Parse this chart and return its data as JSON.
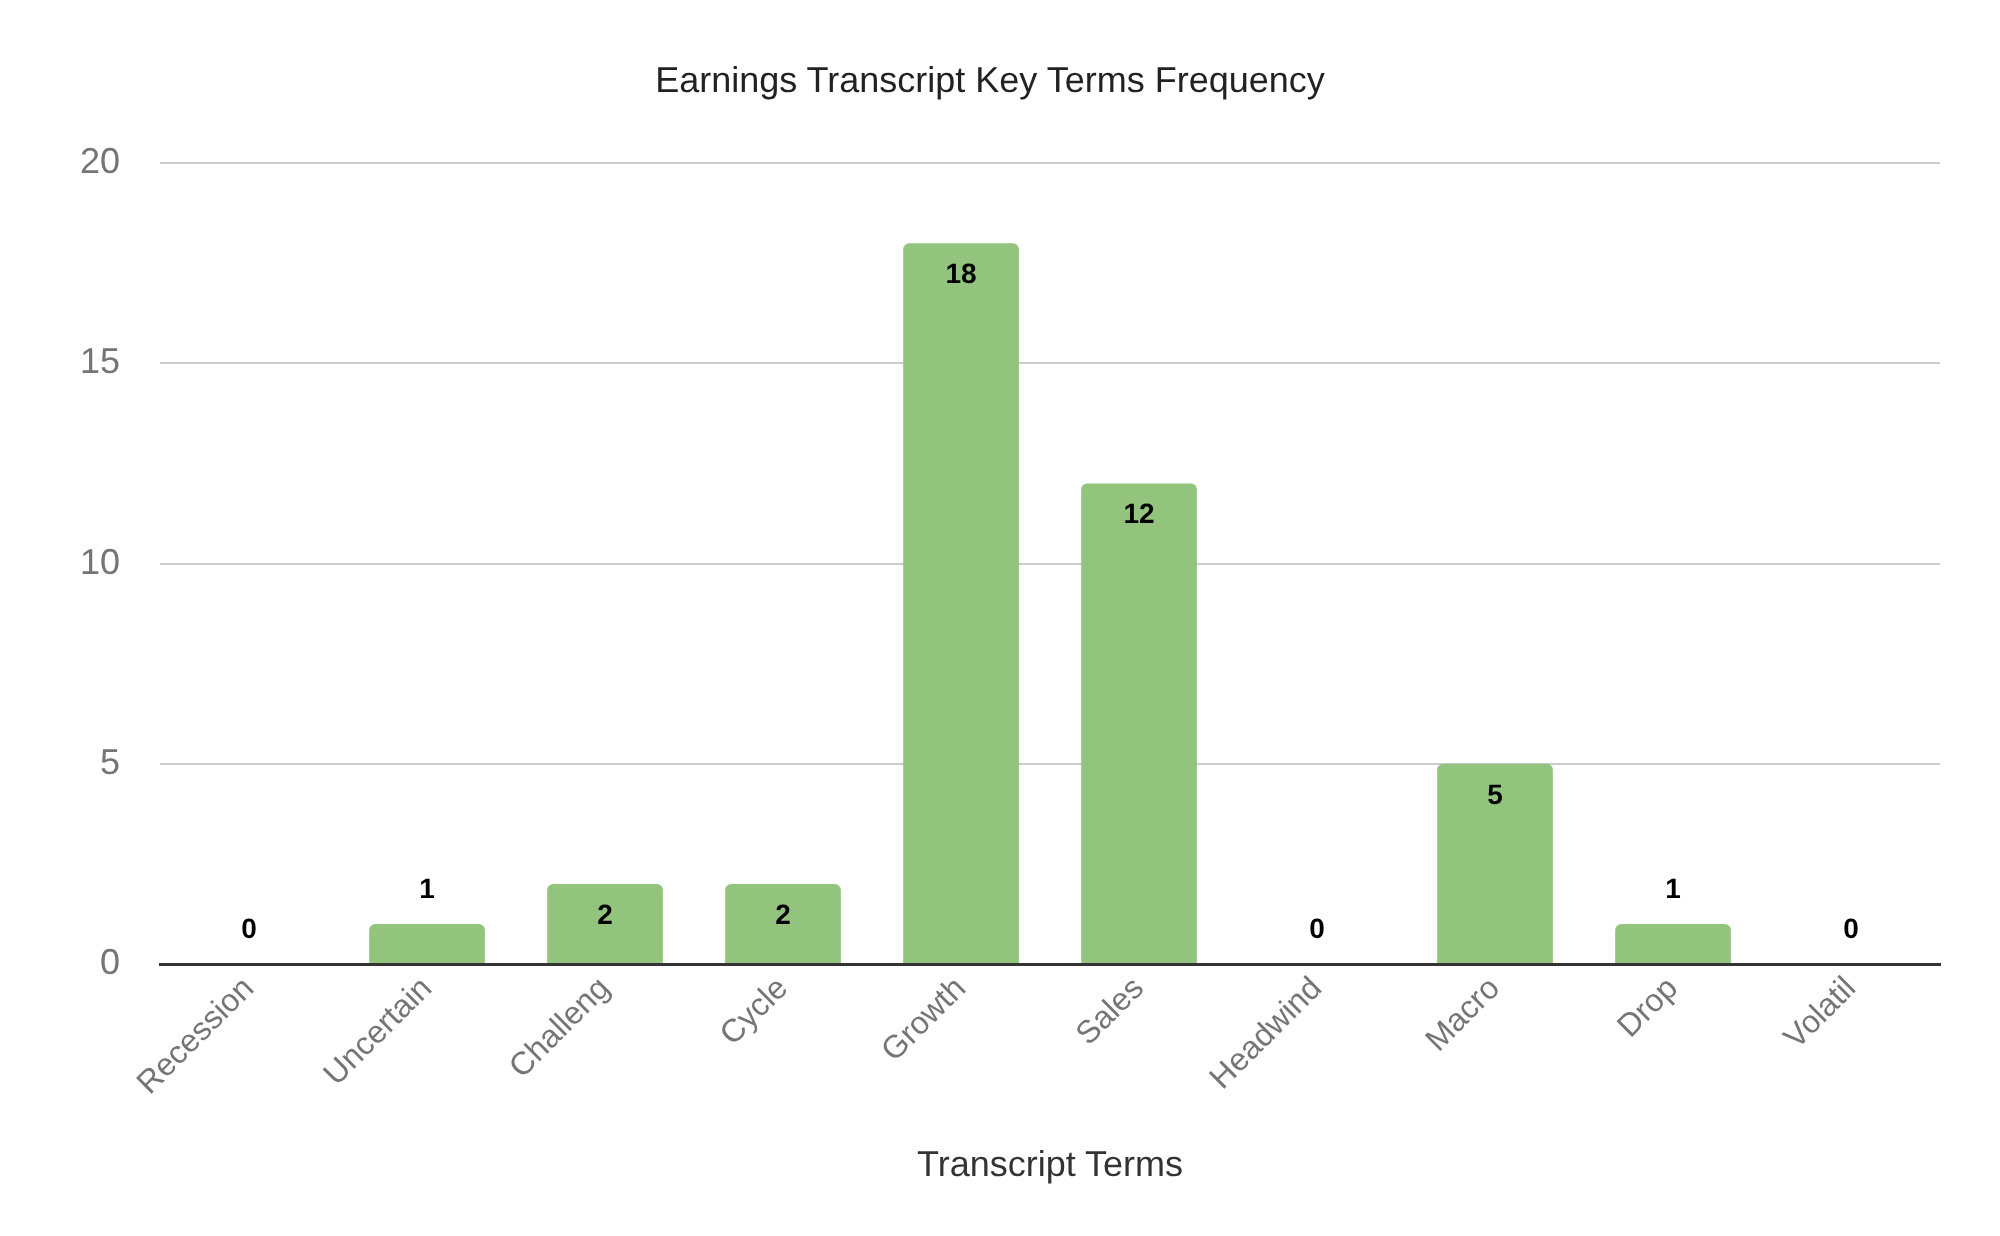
{
  "chart_data": {
    "type": "bar",
    "title": "Earnings Transcript Key Terms Frequency",
    "xlabel": "Transcript Terms",
    "categories": [
      "Recession",
      "Uncertain",
      "Challeng",
      "Cycle",
      "Growth",
      "Sales",
      "Headwind",
      "Macro",
      "Drop",
      "Volatil"
    ],
    "values": [
      0,
      1,
      2,
      2,
      18,
      12,
      0,
      5,
      1,
      0
    ],
    "color": "#93c47d",
    "ylim": [
      0,
      20
    ],
    "yticks": [
      0,
      5,
      10,
      15,
      20
    ],
    "grid": "y",
    "data_labels": true
  }
}
